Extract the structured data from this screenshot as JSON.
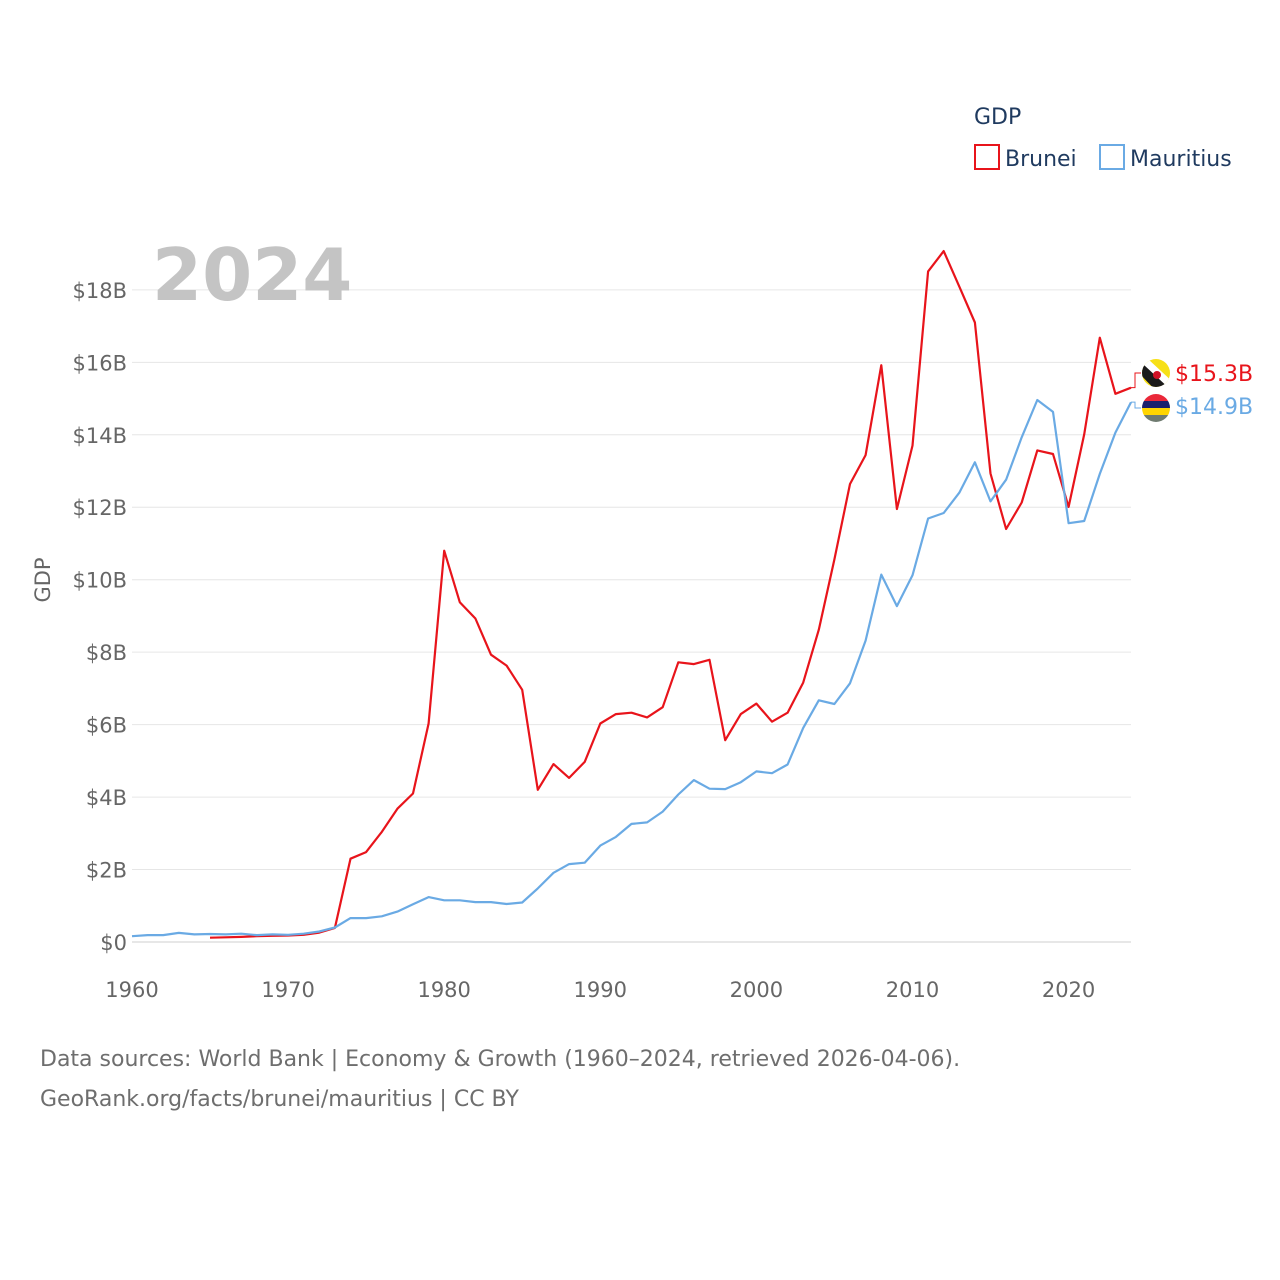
{
  "chart_data": {
    "type": "line",
    "title": "",
    "big_year": "2024",
    "xlabel": "",
    "ylabel": "GDP",
    "xlim": [
      1960,
      2024
    ],
    "ylim": [
      0,
      19.1
    ],
    "x_ticks": [
      1960,
      1970,
      1980,
      1990,
      2000,
      2010,
      2020
    ],
    "y_ticks": [
      {
        "value": 0,
        "label": "$0"
      },
      {
        "value": 2,
        "label": "$2B"
      },
      {
        "value": 4,
        "label": "$4B"
      },
      {
        "value": 6,
        "label": "$6B"
      },
      {
        "value": 8,
        "label": "$8B"
      },
      {
        "value": 10,
        "label": "$10B"
      },
      {
        "value": 12,
        "label": "$12B"
      },
      {
        "value": 14,
        "label": "$14B"
      },
      {
        "value": 16,
        "label": "$16B"
      },
      {
        "value": 18,
        "label": "$18B"
      }
    ],
    "legend": {
      "title": "GDP",
      "position": "top-right"
    },
    "series": [
      {
        "name": "Brunei",
        "color": "#e8141b",
        "end_label": "$15.3B",
        "flag": "brunei-flag-icon",
        "x_start": 1965,
        "values": [
          0.12,
          0.13,
          0.14,
          0.16,
          0.17,
          0.18,
          0.2,
          0.26,
          0.39,
          2.3,
          2.48,
          3.04,
          3.68,
          4.1,
          6.03,
          10.8,
          9.38,
          8.93,
          7.93,
          7.63,
          6.96,
          4.2,
          4.91,
          4.53,
          4.97,
          6.03,
          6.29,
          6.33,
          6.2,
          6.48,
          7.72,
          7.67,
          7.79,
          5.57,
          6.29,
          6.58,
          6.08,
          6.33,
          7.16,
          8.62,
          10.56,
          12.64,
          13.44,
          15.92,
          11.95,
          13.7,
          18.51,
          19.07,
          18.09,
          17.1,
          12.93,
          11.4,
          12.13,
          13.57,
          13.47,
          12.01,
          14.01,
          16.68,
          15.13,
          15.3
        ]
      },
      {
        "name": "Mauritius",
        "color": "#6aaae4",
        "end_label": "$14.9B",
        "flag": "mauritius-flag-icon",
        "x_start": 1960,
        "values": [
          0.16,
          0.19,
          0.19,
          0.25,
          0.21,
          0.22,
          0.21,
          0.23,
          0.19,
          0.21,
          0.2,
          0.23,
          0.29,
          0.4,
          0.66,
          0.66,
          0.71,
          0.84,
          1.04,
          1.24,
          1.15,
          1.15,
          1.1,
          1.1,
          1.05,
          1.09,
          1.48,
          1.91,
          2.15,
          2.19,
          2.66,
          2.9,
          3.26,
          3.3,
          3.6,
          4.07,
          4.47,
          4.23,
          4.22,
          4.41,
          4.71,
          4.66,
          4.9,
          5.91,
          6.67,
          6.57,
          7.14,
          8.32,
          10.14,
          9.27,
          10.12,
          11.69,
          11.84,
          12.4,
          13.24,
          12.16,
          12.76,
          13.93,
          14.96,
          14.63,
          11.56,
          11.62,
          12.92,
          14.06,
          14.9
        ]
      }
    ]
  },
  "footer": {
    "line1": "Data sources: World Bank | Economy & Growth (1960–2024, retrieved 2026-04-06).",
    "line2": "GeoRank.org/facts/brunei/mauritius | CC BY"
  }
}
